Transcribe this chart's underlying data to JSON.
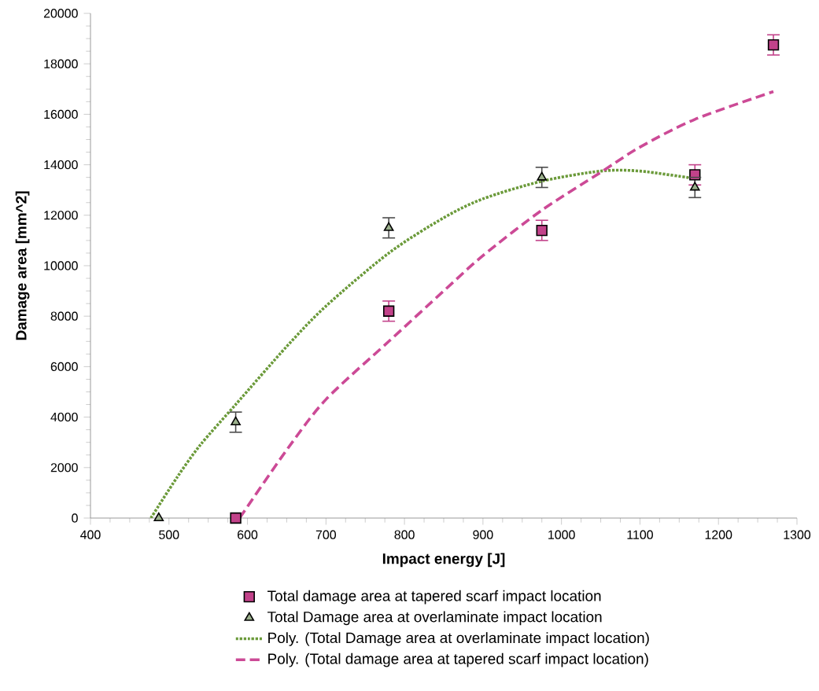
{
  "chart_data": {
    "type": "scatter",
    "xlabel": "Impact energy [J]",
    "ylabel": "Damage area [mm^2]",
    "xlim": [
      400,
      1300
    ],
    "ylim": [
      0,
      20000
    ],
    "xticks": [
      400,
      500,
      600,
      700,
      800,
      900,
      1000,
      1100,
      1200,
      1300
    ],
    "yticks": [
      0,
      2000,
      4000,
      6000,
      8000,
      10000,
      12000,
      14000,
      16000,
      18000,
      20000
    ],
    "legend": "bottom",
    "series": [
      {
        "name": "Total damage area at tapered scarf impact location",
        "color": "#c2428a",
        "marker": "square",
        "x": [
          585,
          780,
          975,
          1170,
          1270
        ],
        "values": [
          0,
          8200,
          11400,
          13600,
          18750
        ],
        "errors": [
          null,
          400,
          400,
          400,
          400
        ]
      },
      {
        "name": "Total Damage area at overlaminate impact location",
        "color": "#9bb08c",
        "marker": "triangle",
        "x": [
          487,
          585,
          780,
          975,
          1170
        ],
        "values": [
          0,
          3800,
          11500,
          13500,
          13100
        ],
        "errors": [
          null,
          400,
          400,
          400,
          400
        ]
      },
      {
        "name": "Poly. (Total Damage area at overlaminate impact location)",
        "type": "line",
        "color": "#6b9a3a",
        "line_style": "dotted",
        "marker": "none",
        "x": [
          477,
          510,
          540,
          585,
          650,
          700,
          780,
          850,
          900,
          975,
          1050,
          1100,
          1170
        ],
        "values": [
          0,
          1600,
          2900,
          4500,
          6800,
          8400,
          10500,
          11900,
          12650,
          13350,
          13750,
          13750,
          13450
        ]
      },
      {
        "name": "Poly. (Total damage area at tapered scarf impact location)",
        "type": "line",
        "color": "#cc4a96",
        "line_style": "dashed",
        "marker": "none",
        "x": [
          590,
          650,
          700,
          780,
          850,
          900,
          975,
          1050,
          1100,
          1170,
          1270
        ],
        "values": [
          0,
          2700,
          4700,
          7000,
          9000,
          10400,
          12200,
          13700,
          14700,
          15800,
          16900
        ]
      }
    ]
  }
}
